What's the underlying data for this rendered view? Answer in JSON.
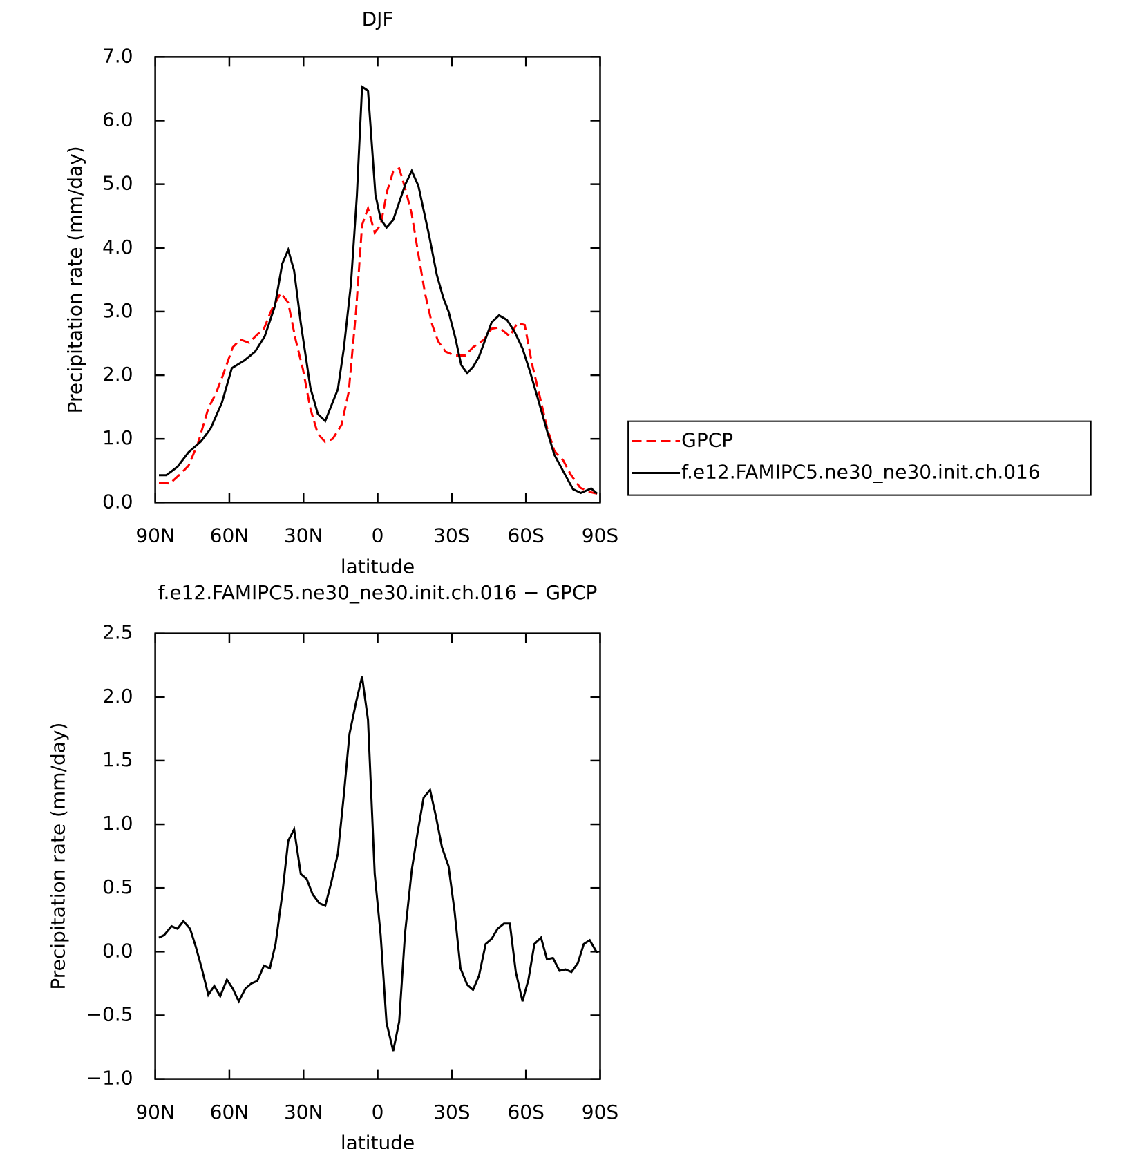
{
  "chart_data": [
    {
      "type": "line",
      "title": "DJF",
      "xlabel": "latitude",
      "ylabel": "Precipitation rate (mm/day)",
      "xlim": [
        90,
        -90
      ],
      "xticks": [
        {
          "value": 90,
          "label": "90N"
        },
        {
          "value": 60,
          "label": "60N"
        },
        {
          "value": 30,
          "label": "30N"
        },
        0,
        {
          "value": -30,
          "label": "30S"
        },
        {
          "value": -60,
          "label": "60S"
        },
        {
          "value": -90,
          "label": "90S"
        }
      ],
      "ylim": [
        0,
        7
      ],
      "yticks": [
        {
          "value": 0,
          "label": "0.0"
        },
        {
          "value": 1,
          "label": "1.0"
        },
        {
          "value": 2,
          "label": "2.0"
        },
        {
          "value": 3,
          "label": "3.0"
        },
        {
          "value": 4,
          "label": "4.0"
        },
        {
          "value": 5,
          "label": "5.0"
        },
        {
          "value": 6,
          "label": "6.0"
        },
        {
          "value": 7,
          "label": "7.0"
        }
      ],
      "legend": "right",
      "series": [
        {
          "name": "GPCP",
          "color": "#ff0000",
          "dash": "dashed",
          "x": [
            88.5,
            84,
            79.5,
            76.5,
            72.7,
            68.5,
            65.5,
            62.5,
            58.6,
            55.6,
            52.0,
            48.7,
            46.0,
            43.0,
            39.2,
            36.2,
            33.2,
            30.2,
            27.2,
            24.2,
            21.2,
            18.2,
            14.6,
            11.7,
            8.7,
            6.3,
            3.9,
            1.2,
            -1.2,
            -3.9,
            -6.3,
            -8.7,
            -11.1,
            -13.8,
            -16.5,
            -19.2,
            -22.1,
            -24.5,
            -27.5,
            -31.1,
            -35.6,
            -38.6,
            -43.1,
            -46.1,
            -49.1,
            -53.5,
            -56.5,
            -59.5,
            -62.5,
            -65.5,
            -68.5,
            -71.5,
            -75.1,
            -78.1,
            -82.0,
            -86.4,
            -88.8
          ],
          "values": [
            0.31,
            0.3,
            0.46,
            0.58,
            0.93,
            1.48,
            1.71,
            2.01,
            2.44,
            2.56,
            2.51,
            2.64,
            2.73,
            3.02,
            3.29,
            3.14,
            2.56,
            2.09,
            1.47,
            1.08,
            0.95,
            1.0,
            1.22,
            1.74,
            3.02,
            4.36,
            4.62,
            4.24,
            4.36,
            4.9,
            5.2,
            5.25,
            4.94,
            4.53,
            3.89,
            3.28,
            2.79,
            2.53,
            2.37,
            2.31,
            2.31,
            2.44,
            2.56,
            2.73,
            2.75,
            2.61,
            2.82,
            2.79,
            2.17,
            1.68,
            1.18,
            0.81,
            0.66,
            0.44,
            0.23,
            0.16,
            0.14
          ]
        },
        {
          "name": "f.e12.FAMIPC5.ne30_ne30.init.ch.016",
          "color": "#000000",
          "dash": "solid",
          "x": [
            88.5,
            85.5,
            81,
            76.5,
            71.5,
            67.6,
            63,
            59,
            54,
            49.6,
            45.7,
            41.6,
            38.6,
            36.2,
            33.8,
            31.1,
            27.2,
            24.2,
            21.2,
            16.1,
            13.7,
            10.8,
            8.4,
            6.3,
            3.9,
            0.9,
            -1.2,
            -3.6,
            -6.3,
            -11.1,
            -13.8,
            -16.5,
            -20.9,
            -23.9,
            -26.6,
            -28.7,
            -31.4,
            -33.8,
            -36.2,
            -38.6,
            -41.0,
            -46.1,
            -49.1,
            -52.3,
            -55.3,
            -58.6,
            -61.6,
            -65.2,
            -68.5,
            -71.5,
            -75.1,
            -79.0,
            -82.2,
            -86.4,
            -88.8
          ],
          "values": [
            0.43,
            0.43,
            0.56,
            0.79,
            0.96,
            1.16,
            1.57,
            2.11,
            2.23,
            2.37,
            2.61,
            3.08,
            3.75,
            3.97,
            3.64,
            2.82,
            1.8,
            1.39,
            1.28,
            1.78,
            2.42,
            3.43,
            4.82,
            6.53,
            6.47,
            4.84,
            4.45,
            4.32,
            4.44,
            4.99,
            5.21,
            4.97,
            4.18,
            3.58,
            3.21,
            3.0,
            2.59,
            2.16,
            2.03,
            2.13,
            2.29,
            2.83,
            2.94,
            2.87,
            2.69,
            2.42,
            2.06,
            1.58,
            1.13,
            0.75,
            0.49,
            0.21,
            0.15,
            0.22,
            0.14
          ]
        }
      ]
    },
    {
      "type": "line",
      "title": "f.e12.FAMIPC5.ne30_ne30.init.ch.016 − GPCP",
      "xlabel": "latitude",
      "ylabel": "Precipitation rate (mm/day)",
      "xlim": [
        90,
        -90
      ],
      "xticks": [
        {
          "value": 90,
          "label": "90N"
        },
        {
          "value": 60,
          "label": "60N"
        },
        {
          "value": 30,
          "label": "30N"
        },
        0,
        {
          "value": -30,
          "label": "30S"
        },
        {
          "value": -60,
          "label": "60S"
        },
        {
          "value": -90,
          "label": "90S"
        }
      ],
      "ylim": [
        -1,
        2.5
      ],
      "yticks": [
        {
          "value": -1,
          "label": "−1.0"
        },
        {
          "value": -0.5,
          "label": "−0.5"
        },
        {
          "value": 0,
          "label": "0.0"
        },
        0.5,
        {
          "value": 1,
          "label": "1.0"
        },
        1.5,
        {
          "value": 2,
          "label": "2.0"
        },
        2.5
      ],
      "series": [
        {
          "color": "#000000",
          "dash": "solid",
          "x": [
            88.5,
            86.4,
            83.4,
            81.0,
            78.6,
            75.9,
            73.6,
            71.2,
            68.5,
            66.1,
            63.7,
            61.0,
            58.6,
            56.2,
            53.5,
            51.1,
            48.7,
            46.0,
            43.6,
            41.3,
            38.6,
            36.2,
            33.8,
            31.1,
            28.7,
            26.3,
            23.6,
            21.2,
            18.8,
            16.1,
            13.7,
            11.4,
            8.7,
            6.3,
            3.9,
            1.2,
            -1.2,
            -3.6,
            -6.3,
            -8.7,
            -11.1,
            -13.8,
            -16.2,
            -18.6,
            -21.2,
            -23.6,
            -26.0,
            -28.7,
            -31.1,
            -33.5,
            -36.2,
            -38.6,
            -41.0,
            -43.7,
            -46.1,
            -48.5,
            -51.1,
            -53.5,
            -55.9,
            -58.6,
            -61.0,
            -63.4,
            -66.1,
            -68.5,
            -70.9,
            -73.6,
            -76.0,
            -78.4,
            -81.0,
            -83.4,
            -85.8,
            -88.8
          ],
          "values": [
            0.11,
            0.13,
            0.2,
            0.18,
            0.24,
            0.18,
            0.04,
            -0.13,
            -0.34,
            -0.27,
            -0.35,
            -0.22,
            -0.29,
            -0.39,
            -0.29,
            -0.25,
            -0.23,
            -0.11,
            -0.13,
            0.06,
            0.45,
            0.87,
            0.96,
            0.61,
            0.57,
            0.45,
            0.38,
            0.36,
            0.54,
            0.77,
            1.23,
            1.71,
            1.96,
            2.16,
            1.82,
            0.61,
            0.13,
            -0.56,
            -0.78,
            -0.55,
            0.15,
            0.64,
            0.94,
            1.21,
            1.27,
            1.06,
            0.82,
            0.67,
            0.32,
            -0.13,
            -0.26,
            -0.3,
            -0.19,
            0.06,
            0.1,
            0.18,
            0.22,
            0.22,
            -0.16,
            -0.39,
            -0.22,
            0.06,
            0.11,
            -0.06,
            -0.05,
            -0.15,
            -0.14,
            -0.16,
            -0.09,
            0.06,
            0.09,
            -0.01
          ]
        }
      ]
    }
  ]
}
